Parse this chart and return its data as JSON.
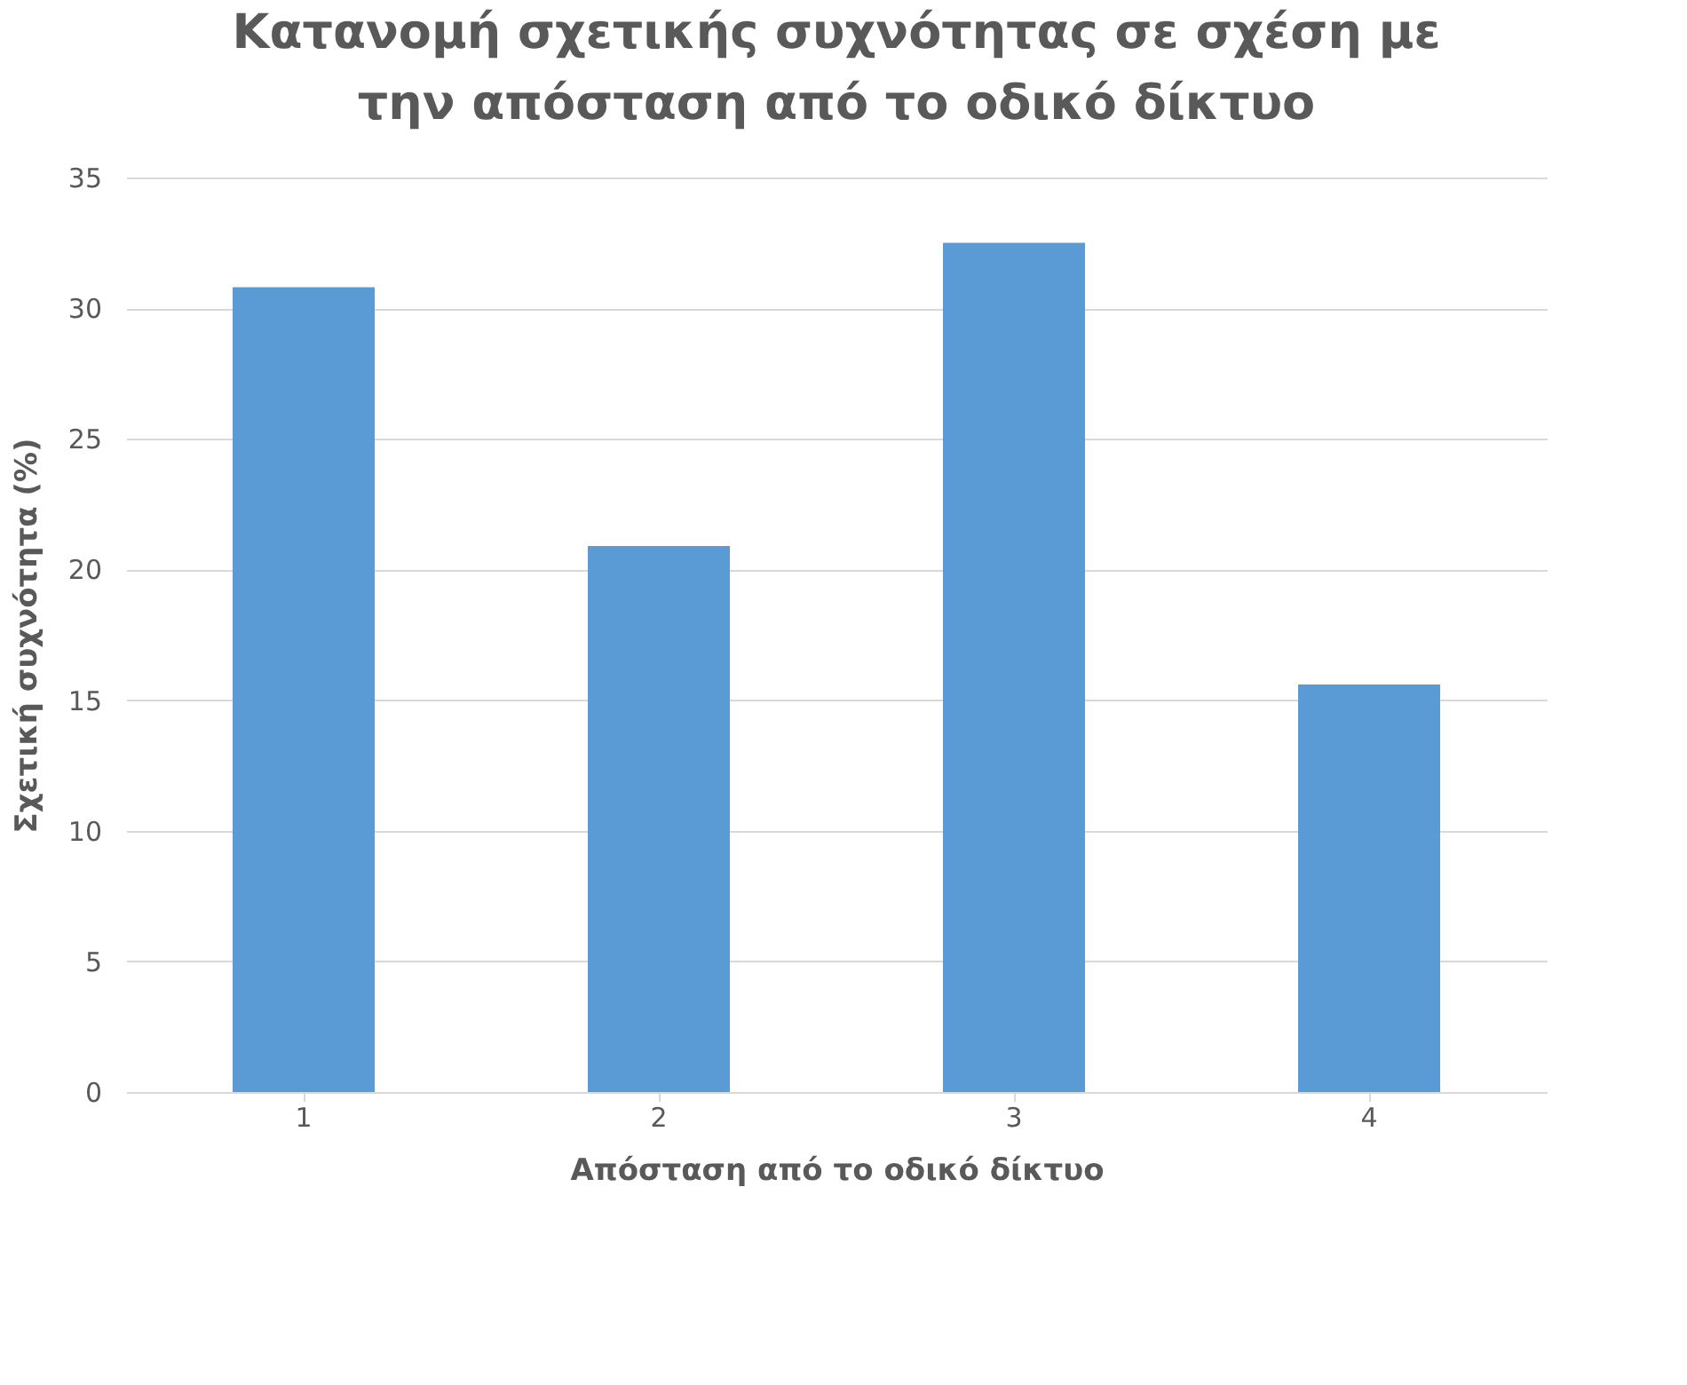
{
  "chart_data": {
    "type": "bar",
    "title": "Κατανομή σχετικής συχνότητας σε σχέση με την απόσταση από το οδικό δίκτυο",
    "xlabel": "Απόσταση από το οδικό δίκτυο",
    "ylabel": "Σχετική συχνότητα (%)",
    "categories": [
      "1",
      "2",
      "3",
      "4"
    ],
    "values": [
      30.8,
      20.9,
      32.5,
      15.6
    ],
    "color": "#5b9bd5",
    "ylim": [
      0,
      35
    ],
    "yticks": [
      0,
      5,
      10,
      15,
      20,
      25,
      30,
      35
    ],
    "grid": "y"
  }
}
